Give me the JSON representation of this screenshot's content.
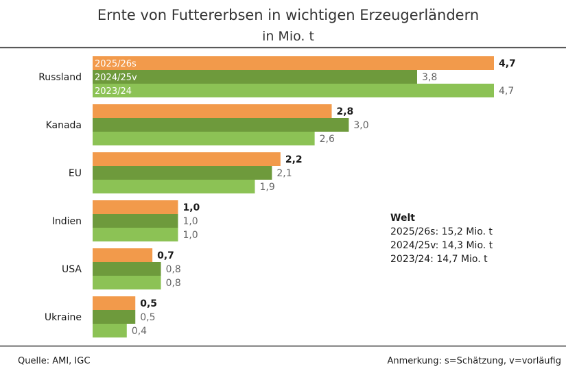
{
  "chart_data": {
    "type": "bar",
    "orientation": "horizontal",
    "title": "Ernte von Futtererbsen in wichtigen Erzeugerländern",
    "subtitle": "in Mio. t",
    "categories": [
      "Russland",
      "Kanada",
      "EU",
      "Indien",
      "USA",
      "Ukraine"
    ],
    "series": [
      {
        "name": "2025/26s",
        "color": "#f29a4b",
        "values": [
          4.7,
          2.8,
          2.2,
          1.0,
          0.7,
          0.5
        ],
        "labels": [
          "4,7",
          "2,8",
          "2,2",
          "1,0",
          "0,7",
          "0,5"
        ]
      },
      {
        "name": "2024/25v",
        "color": "#6e9a3c",
        "values": [
          3.8,
          3.0,
          2.1,
          1.0,
          0.8,
          0.5
        ],
        "labels": [
          "3,8",
          "3,0",
          "2,1",
          "1,0",
          "0,8",
          "0,5"
        ]
      },
      {
        "name": "2023/24",
        "color": "#8cc255",
        "values": [
          4.7,
          2.6,
          1.9,
          1.0,
          0.8,
          0.4
        ],
        "labels": [
          "4,7",
          "2,6",
          "1,9",
          "1,0",
          "0,8",
          "0,4"
        ]
      }
    ],
    "xlim": [
      0,
      4.7
    ],
    "grid": false,
    "legend": "inside-first-group-bars",
    "annotation": {
      "title": "Welt",
      "lines": [
        "2025/26s: 15,2 Mio. t",
        "2024/25v: 14,3 Mio. t",
        "2023/24: 14,7 Mio. t"
      ]
    }
  },
  "footer": {
    "source": "Quelle:  AMI, IGC",
    "note": "Anmerkung: s=Schätzung, v=vorläufig"
  }
}
